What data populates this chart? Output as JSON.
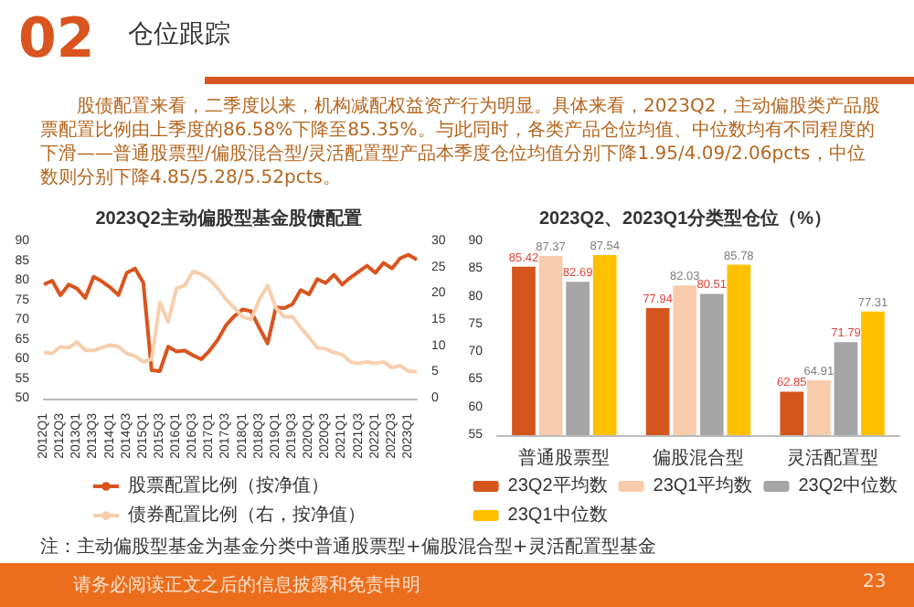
{
  "chart_data": [
    {
      "type": "line",
      "title": "2023Q2主动偏股型基金股债配置",
      "annotations": [
        "02",
        "仓位跟踪",
        "股债配置来看，二季度以来，机构减配权益资产行为明显。具体来看，2023Q2，主动偏股类产品股票配置比例由上季度的86.58%下降至85.35%。与此同时，各类产品仓位均值、中位数均有不同程度的下滑——普通股票型/偏股混合型/灵活配置型产品本季度仓位均值分别下降1.95/4.09/2.06pcts，中位数则分别下降4.85/5.28/5.52pcts。",
        "注：主动偏股型基金为基金分类中普通股票型+偏股混合型+灵活配置型基金",
        "请务必阅读正文之后的信息披露和免责申明",
        "23"
      ],
      "categories": [
        "2012Q1",
        null,
        "2012Q3",
        null,
        "2013Q1",
        null,
        "2013Q3",
        null,
        "2014Q1",
        null,
        "2014Q3",
        null,
        "2015Q1",
        null,
        "2015Q3",
        null,
        "2016Q1",
        null,
        "2016Q3",
        null,
        "2017Q1",
        null,
        "2017Q3",
        null,
        "2018Q1",
        null,
        "2018Q3",
        null,
        "2019Q1",
        null,
        "2019Q3",
        null,
        "2020Q1",
        null,
        "2020Q3",
        null,
        "2021Q1",
        null,
        "2021Q3",
        null,
        "2022Q1",
        null,
        "2022Q3",
        null,
        "2023Q1",
        null
      ],
      "series": [
        {
          "name": "股票配置比例（按净值）",
          "color": "#d9541e",
          "values": [
            79,
            80,
            76.3,
            79,
            78,
            75.6,
            81,
            79.8,
            78.3,
            76.3,
            82,
            83.1,
            79.5,
            57.2,
            57,
            63.2,
            62,
            62.2,
            61,
            60,
            62.2,
            65,
            68.7,
            71,
            72.7,
            72.2,
            68,
            64,
            73.2,
            73,
            74,
            77.6,
            76.5,
            80.4,
            79.4,
            81.5,
            79,
            80.8,
            82.3,
            83.8,
            82,
            84.5,
            83.1,
            85.7,
            86.58,
            85.35
          ]
        },
        {
          "name": "债券配置比例（右，按净值）",
          "color": "#f7cfae",
          "axis": "y2",
          "values": [
            8.8,
            8.6,
            9.9,
            9.7,
            10.8,
            9.2,
            9.2,
            9.7,
            10.2,
            9.9,
            8.6,
            8.1,
            7,
            7.5,
            18.3,
            14.6,
            21,
            21.6,
            24.3,
            23.7,
            22.7,
            21,
            18.9,
            17.3,
            15.6,
            15.1,
            18.9,
            21.6,
            17.3,
            15.6,
            15.6,
            13.5,
            11.7,
            9.7,
            9.5,
            8.8,
            8.4,
            7,
            6.7,
            7,
            6.7,
            7,
            5.9,
            6.3,
            5.2,
            5.2
          ]
        }
      ],
      "ylim": [
        50,
        90
      ],
      "yticks": [
        50,
        55,
        60,
        65,
        70,
        75,
        80,
        85,
        90
      ],
      "y2lim": [
        0,
        30
      ],
      "y2ticks": [
        0,
        5,
        10,
        15,
        20,
        25,
        30
      ],
      "marker": "none",
      "legend": "bottom"
    },
    {
      "type": "bar",
      "title": "2023Q2、2023Q1分类型仓位（%）",
      "categories": [
        "普通股票型",
        "偏股混合型",
        "灵活配置型"
      ],
      "series": [
        {
          "name": "23Q2平均数",
          "color": "#d4561c",
          "values": [
            85.42,
            77.94,
            62.85
          ]
        },
        {
          "name": "23Q1平均数",
          "color": "#f8cbad",
          "values": [
            87.37,
            82.03,
            64.91
          ]
        },
        {
          "name": "23Q2中位数",
          "color": "#a5a5a5",
          "values": [
            82.69,
            80.51,
            71.79
          ]
        },
        {
          "name": "23Q1中位数",
          "color": "#ffc000",
          "values": [
            87.54,
            85.78,
            77.31
          ]
        }
      ],
      "ylim": [
        55,
        90
      ],
      "yticks": [
        55,
        60,
        65,
        70,
        75,
        80,
        85,
        90
      ],
      "data_labels": true,
      "legend": "bottom"
    }
  ]
}
